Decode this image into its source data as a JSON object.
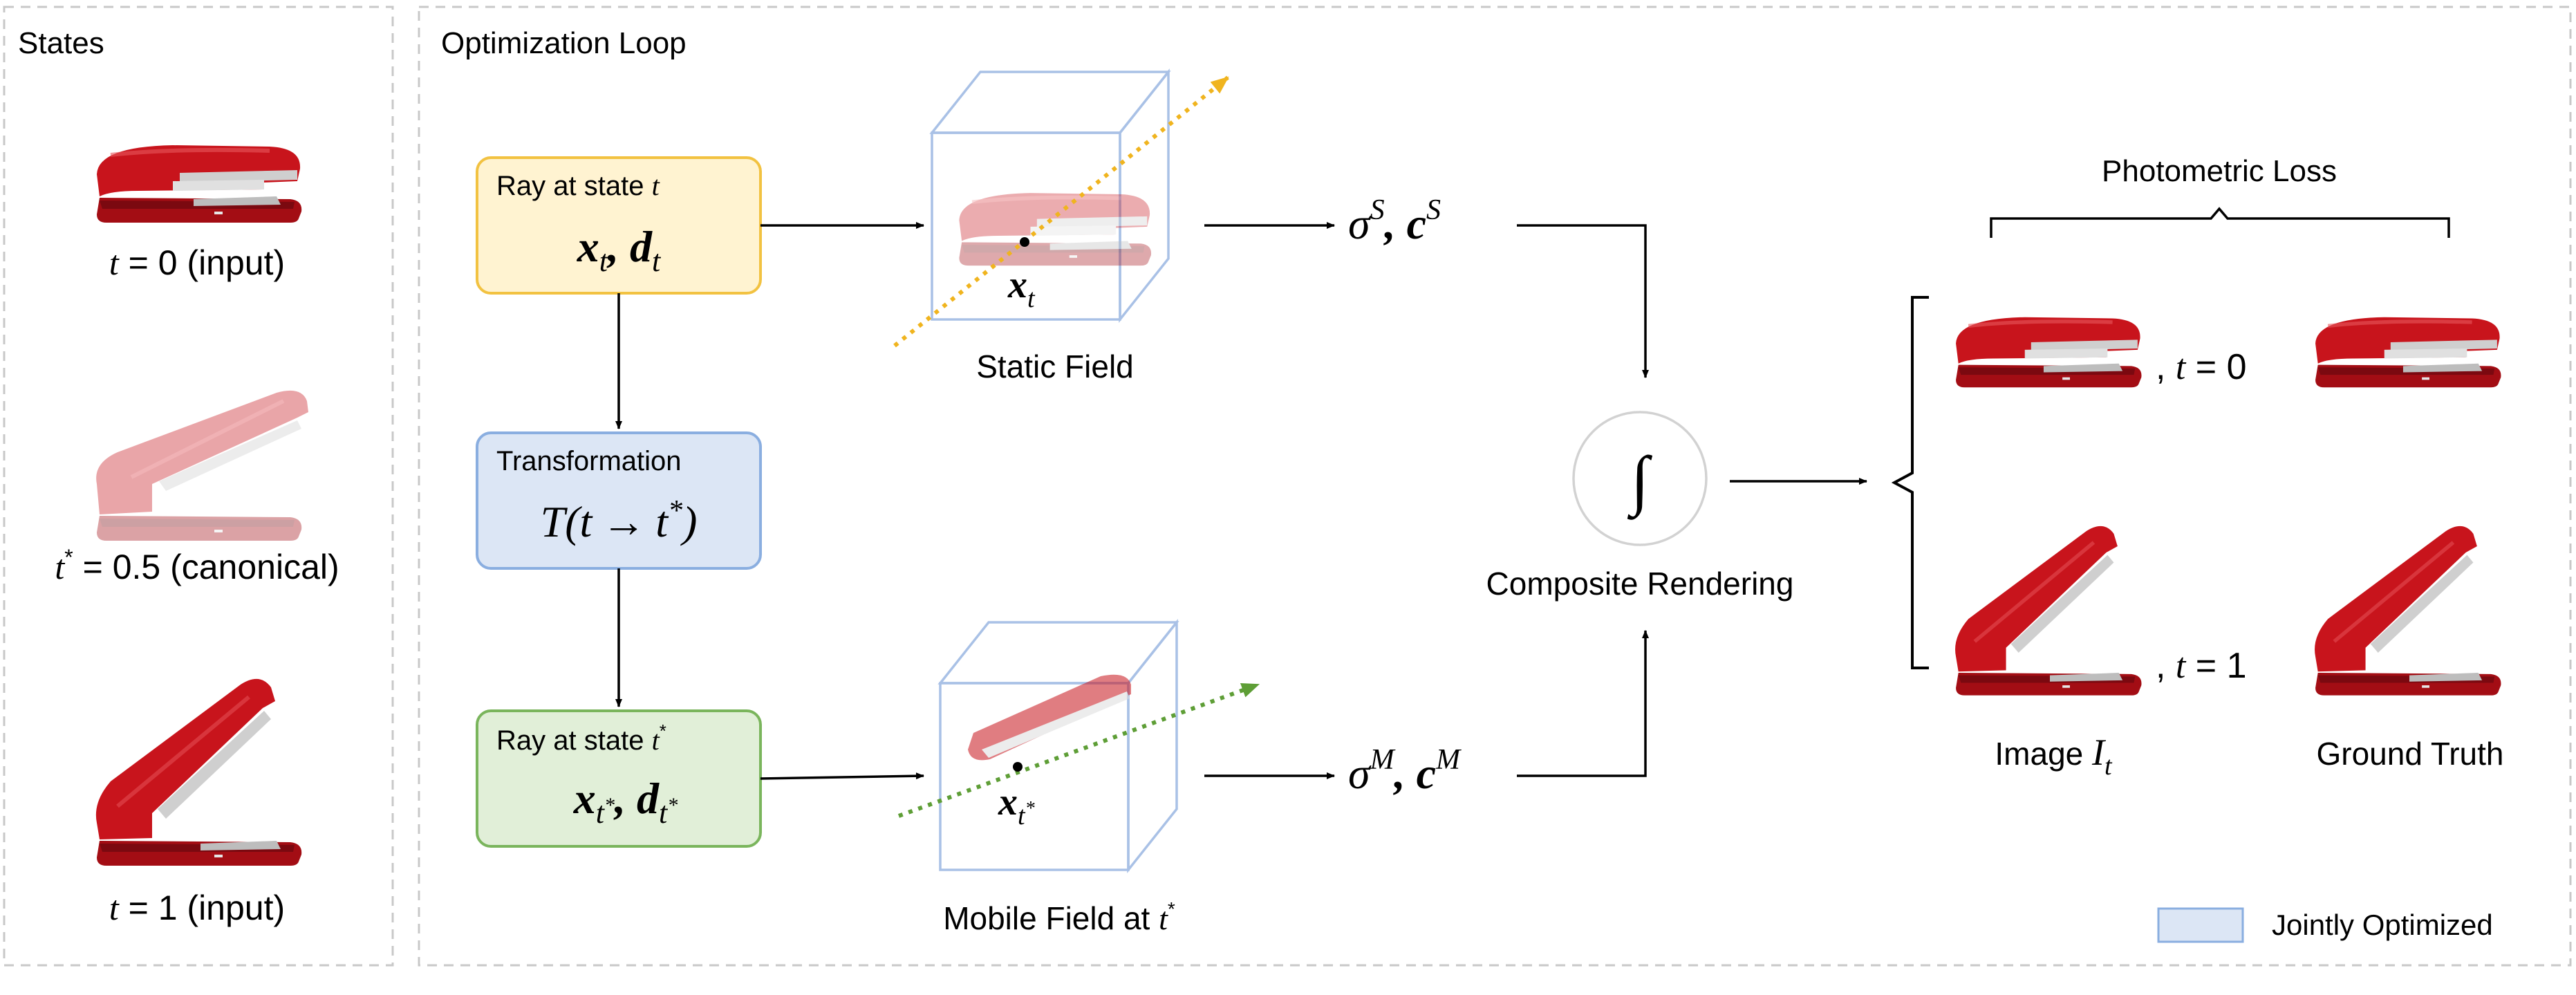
{
  "panels": {
    "states_title": "States",
    "loop_title": "Optimization Loop"
  },
  "states": {
    "items": [
      {
        "var": "t",
        "eq": " = ",
        "value": "0",
        "note": " (input)",
        "state": "closed"
      },
      {
        "var": "t",
        "sup": "*",
        "eq": " = ",
        "value": "0.5",
        "note": " (canonical)",
        "state": "half-open"
      },
      {
        "var": "t",
        "eq": " = ",
        "value": "1",
        "note": " (input)",
        "state": "open"
      }
    ]
  },
  "ray_t": {
    "label": "Ray at state ",
    "label_var": "t",
    "x": "x",
    "x_sub": "t",
    "sep": ", ",
    "d": "d",
    "d_sub": "t"
  },
  "transform": {
    "label": "Transformation",
    "func": "T",
    "arg_open": "(",
    "arg_t": "t",
    "arrow": "→",
    "arg_tstar": "t",
    "star": "*",
    "arg_close": ")"
  },
  "ray_tstar": {
    "label": "Ray at state ",
    "label_var": "t",
    "label_sup": "*",
    "x": "x",
    "x_sub": "t",
    "x_sub_sup": "*",
    "sep": ", ",
    "d": "d",
    "d_sub": "t",
    "d_sub_sup": "*"
  },
  "static_field": {
    "caption": "Static Field",
    "point_label": "x",
    "point_sub": "t",
    "output": {
      "sigma": "σ",
      "sigma_sup": "S",
      "sep": ", ",
      "c": "c",
      "c_sup": "S"
    }
  },
  "mobile_field": {
    "caption": "Mobile Field at ",
    "caption_var": "t",
    "caption_sup": "*",
    "point_label": "x",
    "point_sub": "t",
    "point_sub_sup": "*",
    "output": {
      "sigma": "σ",
      "sigma_sup": "M",
      "sep": ", ",
      "c": "c",
      "c_sup": "M"
    }
  },
  "composite": {
    "symbol": "∫",
    "caption": "Composite Rendering"
  },
  "photometric": {
    "title": "Photometric Loss",
    "rows": [
      {
        "prefix": ", ",
        "var": "t",
        "eq": " = ",
        "value": "0",
        "state": "closed"
      },
      {
        "prefix": ", ",
        "var": "t",
        "eq": " = ",
        "value": "1",
        "state": "open"
      }
    ],
    "image_label": "Image ",
    "image_var": "I",
    "image_sub": "t",
    "gt_label": "Ground Truth"
  },
  "legend": {
    "label": "Jointly Optimized"
  },
  "colors": {
    "panel_border": "#c8c8c8",
    "yellow_fill": "#fff3d1",
    "yellow_stroke": "#f2c241",
    "blue_fill": "#dce6f5",
    "blue_stroke": "#8aaee0",
    "green_fill": "#e1efd8",
    "green_stroke": "#7ab55c",
    "stapler_red": "#c8141c",
    "yellow_ray": "#f0b41e",
    "green_ray": "#5e9e36"
  }
}
